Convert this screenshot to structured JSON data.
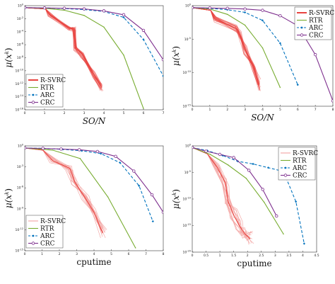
{
  "chart_data": [
    {
      "type": "line",
      "xlabel": "SO/N",
      "ylabel": "μ(x^k)",
      "xlim": [
        0,
        7
      ],
      "ylim_exp": [
        -16,
        0
      ],
      "x_ticks": [
        "0",
        "1",
        "2",
        "3",
        "4",
        "5",
        "6",
        "7"
      ],
      "y_ticks": [
        {
          "exp": 0,
          "label": "10^0"
        },
        {
          "exp": -2,
          "label": "10^-2"
        },
        {
          "exp": -4,
          "label": "10^-4"
        },
        {
          "exp": -6,
          "label": "10^-6"
        },
        {
          "exp": -8,
          "label": "10^-8"
        },
        {
          "exp": -10,
          "label": "10^-10"
        },
        {
          "exp": -12,
          "label": "10^-12"
        },
        {
          "exp": -14,
          "label": "10^-14"
        },
        {
          "exp": -16,
          "label": "10^-16"
        }
      ],
      "legend": {
        "position": "bottom-left",
        "entries": [
          "R-SVRC",
          "RTR",
          "ARC",
          "CRC"
        ]
      },
      "series": [
        {
          "name": "R-SVRC",
          "style": "band",
          "x": [
            0,
            1.05,
            1.25,
            2.25,
            2.5,
            2.55,
            2.9,
            3.5,
            3.9
          ],
          "y_exp": [
            -0.3,
            -0.5,
            -1.4,
            -3.5,
            -3.6,
            -6.5,
            -7.5,
            -10.6,
            -12.6
          ],
          "spread": 0.5
        },
        {
          "name": "RTR",
          "style": "line",
          "x": [
            0,
            1,
            2,
            3,
            4,
            5,
            6
          ],
          "y_exp": [
            -0.3,
            -0.4,
            -0.7,
            -1.5,
            -3.3,
            -7.6,
            -15.8
          ]
        },
        {
          "name": "ARC",
          "style": "dashed",
          "x": [
            0,
            1,
            2,
            3,
            4,
            5,
            6,
            7
          ],
          "y_exp": [
            -0.3,
            -0.35,
            -0.45,
            -0.6,
            -0.9,
            -1.8,
            -5.2,
            -10.8
          ]
        },
        {
          "name": "CRC",
          "style": "circle",
          "x": [
            0,
            1,
            2,
            3,
            4,
            5,
            6,
            7
          ],
          "y_exp": [
            -0.3,
            -0.35,
            -0.4,
            -0.5,
            -0.8,
            -1.4,
            -3.8,
            -8.3
          ]
        }
      ]
    },
    {
      "type": "line",
      "xlabel": "SO/N",
      "ylabel": "μ(x^k)",
      "xlim": [
        0,
        8
      ],
      "ylim_exp": [
        -15,
        0
      ],
      "x_ticks": [
        "0",
        "1",
        "2",
        "3",
        "4",
        "5",
        "6",
        "7",
        "8"
      ],
      "y_ticks": [
        {
          "exp": 0,
          "label": "10^0"
        },
        {
          "exp": -5,
          "label": "10^-5"
        },
        {
          "exp": -10,
          "label": "10^-10"
        },
        {
          "exp": -15,
          "label": "10^-15"
        }
      ],
      "legend": {
        "position": "top-right",
        "entries": [
          "R-SVRC",
          "RTR",
          "ARC",
          "CRC"
        ]
      },
      "series": [
        {
          "name": "R-SVRC",
          "style": "band",
          "x": [
            0,
            1.05,
            1.3,
            2.5,
            2.7,
            3.0,
            3.5,
            3.8
          ],
          "y_exp": [
            -0.3,
            -0.7,
            -2.0,
            -3.4,
            -4.2,
            -6.5,
            -9.0,
            -11.8
          ],
          "spread": 0.8
        },
        {
          "name": "RTR",
          "style": "line",
          "x": [
            0,
            1,
            2,
            3,
            4,
            5
          ],
          "y_exp": [
            -0.3,
            -0.5,
            -1.3,
            -2.9,
            -6.3,
            -12.2
          ]
        },
        {
          "name": "ARC",
          "style": "dashed",
          "x": [
            0,
            1,
            2,
            3,
            4,
            5,
            6
          ],
          "y_exp": [
            -0.3,
            -0.4,
            -0.6,
            -1.0,
            -2.2,
            -5.6,
            -11.8
          ]
        },
        {
          "name": "CRC",
          "style": "circle",
          "x": [
            0,
            1,
            2,
            3,
            4,
            5,
            6,
            7,
            8
          ],
          "y_exp": [
            -0.3,
            -0.35,
            -0.4,
            -0.5,
            -0.7,
            -1.5,
            -3.0,
            -7.3,
            -14.2
          ]
        }
      ]
    },
    {
      "type": "line",
      "xlabel": "cputime",
      "ylabel": "μ(x^k)",
      "xlim": [
        0,
        8
      ],
      "ylim_exp": [
        -15,
        0
      ],
      "x_ticks": [
        "0",
        "1",
        "2",
        "3",
        "4",
        "5",
        "6",
        "7",
        "8"
      ],
      "y_ticks": [
        {
          "exp": 0,
          "label": "10^0"
        },
        {
          "exp": -3,
          "label": "10^-3"
        },
        {
          "exp": -6,
          "label": "10^-6"
        },
        {
          "exp": -9,
          "label": "10^-9"
        },
        {
          "exp": -12,
          "label": "10^-12"
        },
        {
          "exp": -15,
          "label": "10^-15"
        }
      ],
      "legend": {
        "position": "bottom-left",
        "entries": [
          "R-SVRC",
          "RTR",
          "ARC",
          "CRC"
        ]
      },
      "series": [
        {
          "name": "R-SVRC",
          "style": "thin",
          "x": [
            0,
            1.05,
            1.6,
            2.6,
            2.9,
            3.5,
            4.0,
            4.5
          ],
          "y_exp": [
            -0.3,
            -0.6,
            -2.1,
            -3.2,
            -5.2,
            -7.5,
            -9.5,
            -12.5
          ],
          "spread": 0.6
        },
        {
          "name": "RTR",
          "style": "line",
          "x": [
            0,
            1.6,
            3.2,
            4.8,
            6.4
          ],
          "y_exp": [
            -0.3,
            -0.6,
            -1.8,
            -7.3,
            -14.6
          ]
        },
        {
          "name": "ARC",
          "style": "dashed",
          "x": [
            0,
            1.1,
            2.2,
            3.3,
            4.4,
            5.5,
            6.6,
            7.4
          ],
          "y_exp": [
            -0.3,
            -0.35,
            -0.5,
            -0.7,
            -1.1,
            -2.4,
            -5.7,
            -10.8
          ]
        },
        {
          "name": "CRC",
          "style": "circle",
          "x": [
            0,
            1.05,
            2.1,
            3.15,
            4.2,
            5.25,
            6.3,
            7.35,
            8.0
          ],
          "y_exp": [
            -0.3,
            -0.35,
            -0.45,
            -0.55,
            -0.8,
            -1.5,
            -3.6,
            -7.0,
            -9.5
          ]
        }
      ]
    },
    {
      "type": "line",
      "xlabel": "cputime",
      "ylabel": "μ(x^k)",
      "xlim": [
        0,
        4.5
      ],
      "ylim_exp": [
        -20,
        0
      ],
      "x_ticks": [
        "0",
        "0.5",
        "1",
        "1.5",
        "2",
        "2.5",
        "3",
        "3.5",
        "4",
        "4.5"
      ],
      "y_ticks": [
        {
          "exp": 0,
          "label": "10^0"
        },
        {
          "exp": -5,
          "label": "10^-5"
        },
        {
          "exp": -10,
          "label": "10^-10"
        },
        {
          "exp": -15,
          "label": "10^-15"
        },
        {
          "exp": -20,
          "label": "10^-20"
        }
      ],
      "legend": {
        "position": "top-right",
        "entries": [
          "R-SVRC",
          "RTR",
          "ARC",
          "CRC"
        ]
      },
      "series": [
        {
          "name": "R-SVRC",
          "style": "thin",
          "x": [
            0,
            0.55,
            0.9,
            1.2,
            1.3,
            1.5,
            1.7,
            1.9,
            2.1
          ],
          "y_exp": [
            -0.3,
            -1.5,
            -4.0,
            -7.0,
            -10.5,
            -13.0,
            -15.0,
            -16.5,
            -17.5
          ],
          "spread": 1.3
        },
        {
          "name": "RTR",
          "style": "line",
          "x": [
            0,
            0.65,
            1.3,
            1.95,
            2.6,
            3.3
          ],
          "y_exp": [
            -0.3,
            -1.6,
            -3.6,
            -6.1,
            -10.6,
            -16.6
          ]
        },
        {
          "name": "ARC",
          "style": "dashed",
          "x": [
            0,
            0.55,
            1.1,
            1.65,
            2.2,
            2.75,
            3.3,
            3.75,
            4.05
          ],
          "y_exp": [
            -0.3,
            -0.9,
            -1.8,
            -2.9,
            -3.4,
            -4.1,
            -4.8,
            -10.5,
            -18.4
          ]
        },
        {
          "name": "CRC",
          "style": "circle",
          "x": [
            0,
            0.5,
            1.0,
            1.5,
            2.05,
            2.55,
            3.05
          ],
          "y_exp": [
            -0.3,
            -1.0,
            -1.6,
            -2.2,
            -4.6,
            -8.2,
            -13.2
          ]
        }
      ]
    }
  ],
  "colors": {
    "R-SVRC": "#e8433f",
    "R-SVRC-light": "#f3a3a1",
    "RTR": "#77ac30",
    "ARC": "#0072bd",
    "CRC": "#7e2f8e"
  }
}
